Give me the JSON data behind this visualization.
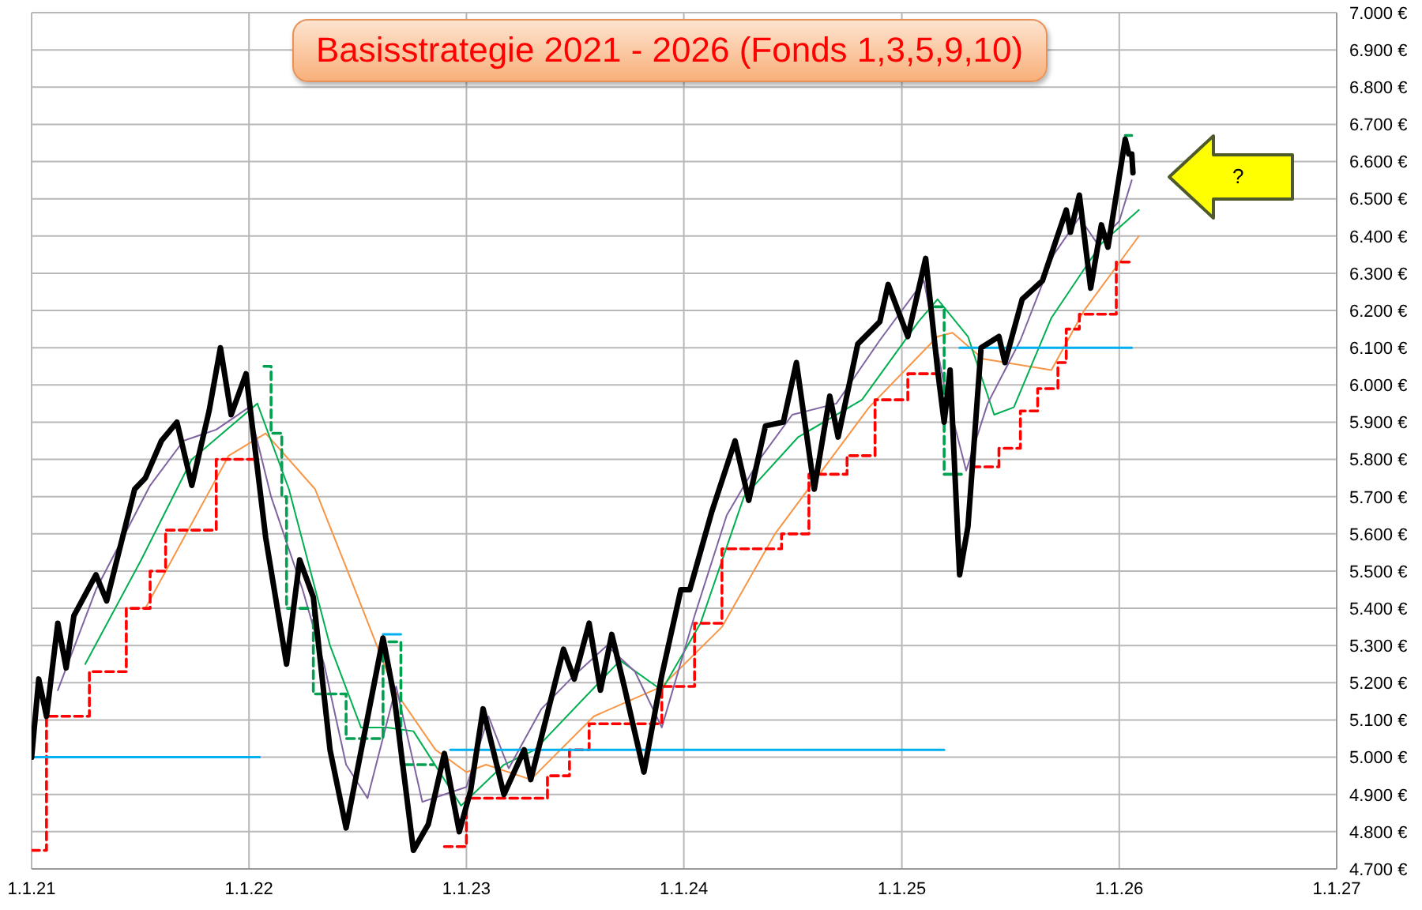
{
  "chart_data": {
    "type": "line",
    "title": "Basisstrategie 2021 - 2026 (Fonds 1,3,5,9,10)",
    "annotations": [
      "?"
    ],
    "xlim": [
      "2021-01-01",
      "2027-01-01"
    ],
    "xticks": [
      {
        "value": "2021-01-01",
        "label": "1.1.21"
      },
      {
        "value": "2022-01-01",
        "label": "1.1.22"
      },
      {
        "value": "2023-01-01",
        "label": "1.1.23"
      },
      {
        "value": "2024-01-01",
        "label": "1.1.24"
      },
      {
        "value": "2025-01-01",
        "label": "1.1.25"
      },
      {
        "value": "2026-01-01",
        "label": "1.1.26"
      },
      {
        "value": "2027-01-01",
        "label": "1.1.27"
      }
    ],
    "ylim": [
      4700,
      7000
    ],
    "yticks": [
      {
        "value": 4700,
        "label": "4.700 €"
      },
      {
        "value": 4800,
        "label": "4.800 €"
      },
      {
        "value": 4900,
        "label": "4.900 €"
      },
      {
        "value": 5000,
        "label": "5.000 €"
      },
      {
        "value": 5100,
        "label": "5.100 €"
      },
      {
        "value": 5200,
        "label": "5.200 €"
      },
      {
        "value": 5300,
        "label": "5.300 €"
      },
      {
        "value": 5400,
        "label": "5.400 €"
      },
      {
        "value": 5500,
        "label": "5.500 €"
      },
      {
        "value": 5600,
        "label": "5.600 €"
      },
      {
        "value": 5700,
        "label": "5.700 €"
      },
      {
        "value": 5800,
        "label": "5.800 €"
      },
      {
        "value": 5900,
        "label": "5.900 €"
      },
      {
        "value": 6000,
        "label": "6.000 €"
      },
      {
        "value": 6100,
        "label": "6.100 €"
      },
      {
        "value": 6200,
        "label": "6.200 €"
      },
      {
        "value": 6300,
        "label": "6.300 €"
      },
      {
        "value": 6400,
        "label": "6.400 €"
      },
      {
        "value": 6500,
        "label": "6.500 €"
      },
      {
        "value": 6600,
        "label": "6.600 €"
      },
      {
        "value": 6700,
        "label": "6.700 €"
      },
      {
        "value": 6800,
        "label": "6.800 €"
      },
      {
        "value": 6900,
        "label": "6.900 €"
      },
      {
        "value": 7000,
        "label": "7.000 €"
      }
    ],
    "grid": true,
    "series": [
      {
        "color": "#f79646",
        "x": [
          "2021-07-11",
          "2021-11-28",
          "2022-01-29",
          "2022-04-22",
          "2022-06-23",
          "2022-09-02",
          "2022-11-10",
          "2023-01-01",
          "2023-02-03",
          "2023-04-19",
          "2023-08-03",
          "2023-11-25",
          "2024-03-05",
          "2024-06-02",
          "2024-11-07",
          "2025-03-02",
          "2025-03-27",
          "2025-05-17",
          "2025-09-09",
          "2025-11-03",
          "2026-02-03"
        ],
        "values": [
          5400,
          5810,
          5870,
          5720,
          5470,
          5180,
          5020,
          4960,
          4980,
          4940,
          5110,
          5190,
          5350,
          5600,
          5940,
          6130,
          6140,
          6070,
          6040,
          6200,
          6400
        ]
      },
      {
        "color": "#00b050",
        "x": [
          "2021-04-01",
          "2021-07-04",
          "2021-09-27",
          "2022-01-15",
          "2022-03-09",
          "2022-05-17",
          "2022-07-08",
          "2022-08-21",
          "2022-10-04",
          "2022-12-23",
          "2023-03-05",
          "2023-04-26",
          "2023-09-16",
          "2023-11-25",
          "2024-01-29",
          "2024-04-11",
          "2024-07-11",
          "2024-10-26",
          "2025-01-29",
          "2025-03-02",
          "2025-04-22",
          "2025-06-05",
          "2025-07-08",
          "2025-09-09",
          "2025-12-02",
          "2026-02-03"
        ],
        "values": [
          5250,
          5530,
          5800,
          5950,
          5720,
          5300,
          5080,
          5080,
          5070,
          4870,
          4980,
          5020,
          5260,
          5180,
          5360,
          5700,
          5860,
          5960,
          6170,
          6230,
          6130,
          5920,
          5940,
          6180,
          6380,
          6470
        ]
      },
      {
        "color": "#8064a2",
        "x": [
          "2021-02-14",
          "2021-04-19",
          "2021-07-19",
          "2021-09-13",
          "2021-11-07",
          "2022-01-01",
          "2022-02-07",
          "2022-04-01",
          "2022-05-07",
          "2022-06-13",
          "2022-07-19",
          "2022-09-05",
          "2022-10-19",
          "2022-11-25",
          "2023-01-01",
          "2023-02-07",
          "2023-03-13",
          "2023-05-07",
          "2023-07-01",
          "2023-08-25",
          "2023-10-11",
          "2023-11-25",
          "2024-01-19",
          "2024-03-13",
          "2024-05-07",
          "2024-07-01",
          "2024-09-13",
          "2024-11-25",
          "2025-02-07",
          "2025-03-13",
          "2025-04-19",
          "2025-05-25",
          "2025-07-19",
          "2025-09-13",
          "2025-10-26",
          "2025-11-25",
          "2026-01-01",
          "2026-01-22"
        ],
        "values": [
          5180,
          5450,
          5730,
          5850,
          5880,
          5940,
          5700,
          5450,
          5250,
          4980,
          4890,
          5190,
          4880,
          4900,
          4920,
          5110,
          4970,
          5130,
          5220,
          5300,
          5230,
          5080,
          5380,
          5650,
          5800,
          5920,
          5950,
          6120,
          6280,
          6000,
          5770,
          5950,
          6120,
          6350,
          6450,
          6380,
          6440,
          6550
        ]
      },
      {
        "type": "step",
        "color": "#00a050",
        "line_style": "dashed",
        "x": [
          "2022-01-26",
          "2022-02-07",
          "2022-02-25",
          "2022-03-05",
          "2022-04-19",
          "2022-06-13",
          "2022-08-14",
          "2022-09-13",
          "2022-11-07",
          "2022-11-10",
          "2025-02-25",
          "2025-03-13",
          "2025-04-11",
          "2025-04-15",
          "2026-01-11",
          "2026-01-22"
        ],
        "values": [
          6050,
          5870,
          5700,
          5400,
          5170,
          5050,
          5310,
          4980,
          4980,
          null,
          6210,
          5760,
          5760,
          null,
          6670,
          6670
        ]
      },
      {
        "type": "step",
        "color": "#ff0000",
        "line_style": "dashed",
        "x": [
          "2021-01-01",
          "2021-01-26",
          "2021-04-08",
          "2021-06-09",
          "2021-07-19",
          "2021-08-14",
          "2021-11-07",
          "2022-01-19",
          "2022-01-22",
          "2022-11-25",
          "2023-01-01",
          "2023-05-17",
          "2023-06-23",
          "2023-07-26",
          "2023-11-25",
          "2024-01-19",
          "2024-03-05",
          "2024-06-13",
          "2024-07-29",
          "2024-10-01",
          "2024-11-17",
          "2025-01-11",
          "2025-02-25",
          "2025-02-28",
          "2025-04-29",
          "2025-06-13",
          "2025-07-19",
          "2025-08-17",
          "2025-09-20",
          "2025-10-04",
          "2025-10-26",
          "2025-12-27",
          "2026-01-22"
        ],
        "values": [
          4750,
          5110,
          5230,
          5400,
          5500,
          5610,
          5800,
          5800,
          null,
          4760,
          4890,
          4950,
          5020,
          5090,
          5190,
          5360,
          5560,
          5600,
          5760,
          5810,
          5960,
          6030,
          6030,
          null,
          5780,
          5830,
          5930,
          5990,
          6060,
          6150,
          6190,
          6330,
          6330
        ]
      },
      {
        "color": "#00b0f0",
        "x": [
          "2021-01-01",
          "2022-01-19"
        ],
        "values": [
          5000,
          5000
        ]
      },
      {
        "color": "#00b0f0",
        "x": [
          "2022-08-14",
          "2022-09-13"
        ],
        "values": [
          5330,
          5330
        ]
      },
      {
        "color": "#00b0f0",
        "x": [
          "2022-12-05",
          "2025-03-13"
        ],
        "values": [
          5020,
          5020
        ]
      },
      {
        "color": "#00b0f0",
        "x": [
          "2025-04-08",
          "2026-01-22"
        ],
        "values": [
          6100,
          6100
        ]
      },
      {
        "color": "#000000",
        "x": [
          "2021-01-01",
          "2021-01-13",
          "2021-01-26",
          "2021-02-14",
          "2021-02-28",
          "2021-03-13",
          "2021-04-19",
          "2021-05-07",
          "2021-06-23",
          "2021-07-11",
          "2021-08-07",
          "2021-09-02",
          "2021-09-27",
          "2021-10-26",
          "2021-11-14",
          "2021-12-02",
          "2021-12-27",
          "2022-01-29",
          "2022-03-05",
          "2022-03-27",
          "2022-04-19",
          "2022-05-17",
          "2022-06-13",
          "2022-08-14",
          "2022-09-02",
          "2022-10-04",
          "2022-10-29",
          "2022-11-25",
          "2022-12-20",
          "2023-01-08",
          "2023-01-29",
          "2023-03-05",
          "2023-04-08",
          "2023-04-19",
          "2023-06-13",
          "2023-07-01",
          "2023-07-26",
          "2023-08-14",
          "2023-09-02",
          "2023-09-23",
          "2023-10-26",
          "2023-11-25",
          "2023-12-27",
          "2024-01-11",
          "2024-02-17",
          "2024-03-27",
          "2024-04-19",
          "2024-05-17",
          "2024-06-16",
          "2024-07-08",
          "2024-08-07",
          "2024-09-02",
          "2024-09-16",
          "2024-10-19",
          "2024-11-25",
          "2024-12-09",
          "2025-01-11",
          "2025-02-10",
          "2025-03-02",
          "2025-03-13",
          "2025-03-23",
          "2025-04-08",
          "2025-04-22",
          "2025-05-14",
          "2025-06-13",
          "2025-06-23",
          "2025-07-22",
          "2025-08-25",
          "2025-10-04",
          "2025-10-11",
          "2025-10-26",
          "2025-11-14",
          "2025-12-02",
          "2025-12-13",
          "2026-01-11",
          "2026-01-17",
          "2026-01-22",
          "2026-01-24"
        ],
        "values": [
          5000,
          5210,
          5110,
          5360,
          5240,
          5380,
          5490,
          5420,
          5720,
          5750,
          5850,
          5900,
          5730,
          5930,
          6100,
          5920,
          6030,
          5590,
          5250,
          5530,
          5430,
          5020,
          4810,
          5320,
          5160,
          4750,
          4820,
          5010,
          4800,
          4910,
          5130,
          4900,
          5020,
          4940,
          5290,
          5210,
          5360,
          5180,
          5330,
          5190,
          4960,
          5220,
          5450,
          5450,
          5660,
          5850,
          5690,
          5890,
          5900,
          6060,
          5720,
          5970,
          5860,
          6110,
          6170,
          6270,
          6130,
          6340,
          6040,
          5900,
          6040,
          5490,
          5620,
          6100,
          6130,
          6060,
          6230,
          6280,
          6470,
          6410,
          6510,
          6260,
          6430,
          6370,
          6660,
          6620,
          6620,
          6570
        ]
      }
    ]
  }
}
